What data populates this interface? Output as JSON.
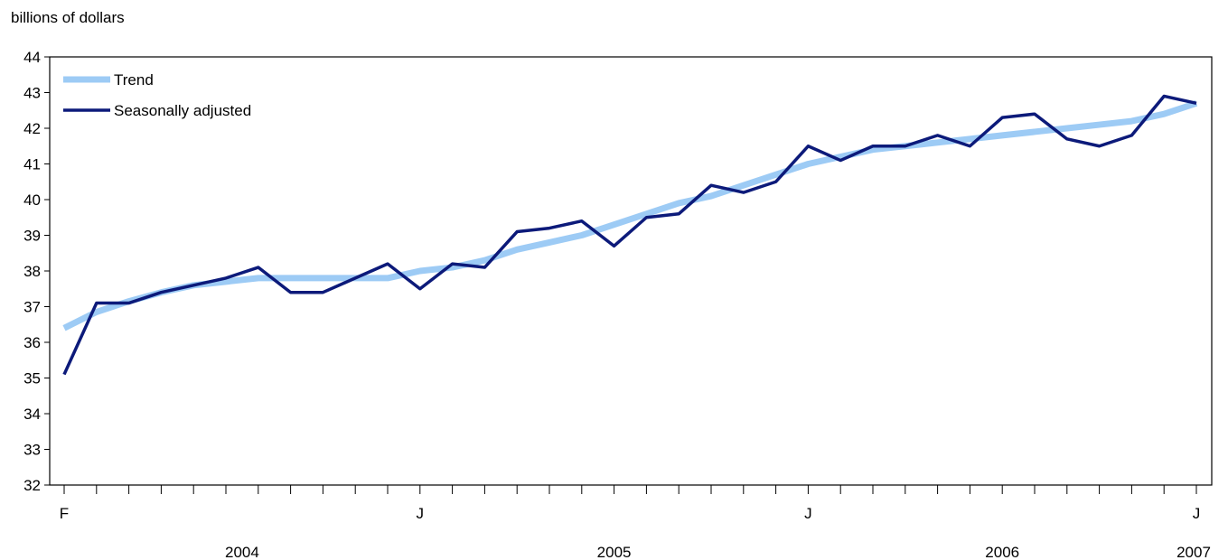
{
  "chart_data": {
    "type": "line",
    "title": "",
    "ylabel": "billions of dollars",
    "xlabel": "",
    "ylim": [
      32,
      44
    ],
    "yticks": [
      32,
      33,
      34,
      35,
      36,
      37,
      38,
      39,
      40,
      41,
      42,
      43,
      44
    ],
    "grid": false,
    "legend": "top-left",
    "x_month_labels": [
      {
        "index": 0,
        "label": "F"
      },
      {
        "index": 11,
        "label": "J"
      },
      {
        "index": 23,
        "label": "J"
      },
      {
        "index": 35,
        "label": "J"
      }
    ],
    "x_year_labels": [
      {
        "label": "2004",
        "start": 0,
        "end": 11
      },
      {
        "label": "2005",
        "start": 11,
        "end": 23
      },
      {
        "label": "2006",
        "start": 23,
        "end": 35
      },
      {
        "label": "2007",
        "start": 35,
        "end": 35
      }
    ],
    "x": [
      "2004-02",
      "2004-03",
      "2004-04",
      "2004-05",
      "2004-06",
      "2004-07",
      "2004-08",
      "2004-09",
      "2004-10",
      "2004-11",
      "2004-12",
      "2005-01",
      "2005-02",
      "2005-03",
      "2005-04",
      "2005-05",
      "2005-06",
      "2005-07",
      "2005-08",
      "2005-09",
      "2005-10",
      "2005-11",
      "2005-12",
      "2006-01",
      "2006-02",
      "2006-03",
      "2006-04",
      "2006-05",
      "2006-06",
      "2006-07",
      "2006-08",
      "2006-09",
      "2006-10",
      "2006-11",
      "2006-12",
      "2007-01"
    ],
    "series": [
      {
        "name": "Trend",
        "color": "#9dcbf5",
        "values": [
          36.4,
          36.85,
          37.15,
          37.4,
          37.6,
          37.7,
          37.8,
          37.8,
          37.8,
          37.8,
          37.8,
          38.0,
          38.1,
          38.3,
          38.6,
          38.8,
          39.0,
          39.3,
          39.6,
          39.9,
          40.1,
          40.4,
          40.7,
          41.0,
          41.2,
          41.4,
          41.5,
          41.6,
          41.7,
          41.8,
          41.9,
          42.0,
          42.1,
          42.2,
          42.4,
          42.7
        ]
      },
      {
        "name": "Seasonally adjusted",
        "color": "#0c1a7a",
        "values": [
          35.1,
          37.1,
          37.1,
          37.4,
          37.6,
          37.8,
          38.1,
          37.4,
          37.4,
          37.8,
          38.2,
          37.5,
          38.2,
          38.1,
          39.1,
          39.2,
          39.4,
          38.7,
          39.5,
          39.6,
          40.4,
          40.2,
          40.5,
          41.5,
          41.1,
          41.5,
          41.5,
          41.8,
          41.5,
          42.3,
          42.4,
          41.7,
          41.5,
          41.8,
          42.9,
          42.7
        ]
      }
    ]
  }
}
